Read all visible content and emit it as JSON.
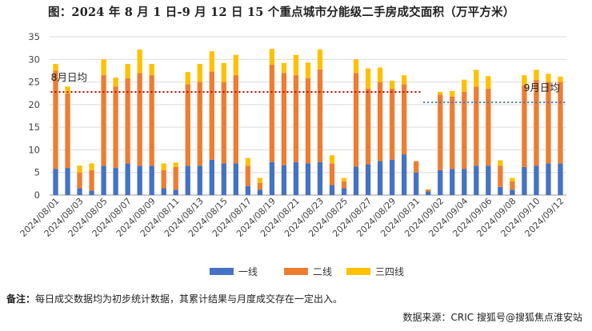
{
  "title": "图：2024 年 8 月 1 日-9 月 12 日 15 个重点城市分能级二手房成交面积（万平方米）",
  "note_label": "备注：",
  "note_text": "每日成交数据均为初步统计数据，其累计结果与月度成交存在一定出入。",
  "source": "数据来源：CRIC 搜狐号@搜狐焦点淮安站",
  "chart_data": {
    "type": "bar",
    "stacked": true,
    "ylim": [
      0,
      35
    ],
    "yticks": [
      0,
      5,
      10,
      15,
      20,
      25,
      30,
      35
    ],
    "grid": true,
    "legend_position": "bottom",
    "categories": [
      "2024/08/01",
      "2024/08/02",
      "2024/08/03",
      "2024/08/04",
      "2024/08/05",
      "2024/08/06",
      "2024/08/07",
      "2024/08/08",
      "2024/08/09",
      "2024/08/10",
      "2024/08/11",
      "2024/08/12",
      "2024/08/13",
      "2024/08/14",
      "2024/08/15",
      "2024/08/16",
      "2024/08/17",
      "2024/08/18",
      "2024/08/19",
      "2024/08/20",
      "2024/08/21",
      "2024/08/22",
      "2024/08/23",
      "2024/08/24",
      "2024/08/25",
      "2024/08/26",
      "2024/08/27",
      "2024/08/28",
      "2024/08/29",
      "2024/08/30",
      "2024/08/31",
      "2024/09/01",
      "2024/09/02",
      "2024/09/03",
      "2024/09/04",
      "2024/09/05",
      "2024/09/06",
      "2024/09/07",
      "2024/09/08",
      "2024/09/09",
      "2024/09/10",
      "2024/09/11",
      "2024/09/12"
    ],
    "series": [
      {
        "name": "一线",
        "color": "#4472C4",
        "values": [
          5.8,
          6.0,
          1.5,
          1.0,
          6.5,
          6.0,
          7.0,
          6.5,
          6.5,
          1.5,
          1.2,
          6.5,
          6.5,
          7.8,
          7.0,
          7.0,
          2.0,
          1.2,
          7.3,
          6.6,
          7.3,
          7.0,
          7.3,
          2.2,
          1.5,
          6.3,
          6.8,
          7.5,
          7.8,
          9.0,
          5.0,
          0.8,
          5.5,
          5.8,
          5.8,
          6.5,
          6.5,
          1.8,
          1.2,
          6.2,
          6.5,
          7.0,
          7.0
        ]
      },
      {
        "name": "二线",
        "color": "#ED7D31",
        "values": [
          21.7,
          16.5,
          3.5,
          4.5,
          20.0,
          18.0,
          18.8,
          20.5,
          20.0,
          4.0,
          5.0,
          18.0,
          18.5,
          19.5,
          18.0,
          19.5,
          4.5,
          1.5,
          21.5,
          20.4,
          19.2,
          18.8,
          20.5,
          4.8,
          1.5,
          20.7,
          16.7,
          17.5,
          15.7,
          15.5,
          2.5,
          0.4,
          16.7,
          16.0,
          17.0,
          17.5,
          17.0,
          4.7,
          1.8,
          18.0,
          19.0,
          18.0,
          18.0
        ]
      },
      {
        "name": "三四线",
        "color": "#FFC000",
        "values": [
          1.5,
          1.5,
          1.5,
          1.5,
          3.5,
          2.0,
          3.2,
          5.2,
          2.5,
          1.5,
          1.0,
          2.7,
          4.0,
          4.5,
          4.2,
          4.5,
          1.7,
          1.1,
          3.5,
          2.2,
          4.5,
          3.5,
          4.4,
          1.8,
          0.8,
          3.0,
          4.5,
          3.2,
          1.8,
          2.0,
          0.0,
          0.1,
          0.6,
          1.2,
          2.7,
          3.7,
          2.8,
          1.2,
          0.8,
          2.3,
          2.2,
          1.8,
          1.2
        ]
      }
    ],
    "reference_lines": [
      {
        "label": "8月日均",
        "value": 22.8,
        "from": "2024/08/01",
        "to": "2024/08/31",
        "color": "#C00000"
      },
      {
        "label": "9月日均",
        "value": 20.5,
        "from": "2024/09/01",
        "to": "2024/09/12",
        "color": "#4472C4"
      }
    ]
  }
}
